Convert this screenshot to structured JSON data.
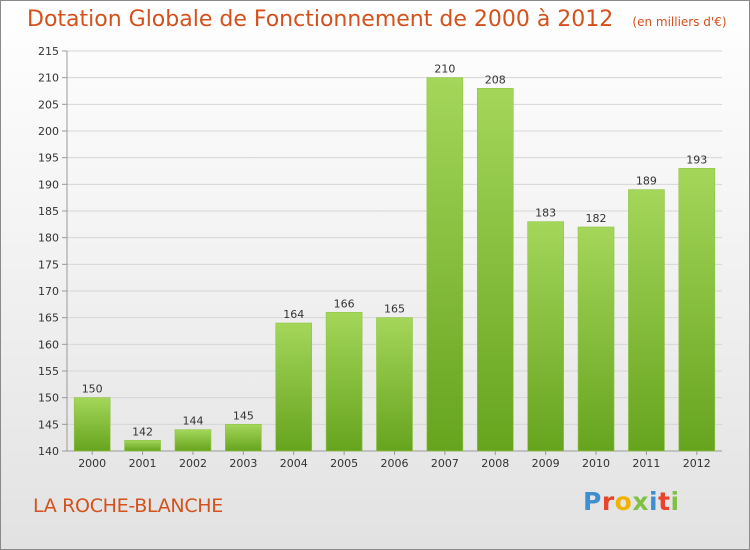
{
  "header": {
    "title": "Dotation Globale de Fonctionnement de 2000 à 2012",
    "unit": "(en milliers d'€)"
  },
  "footer": {
    "commune": "LA ROCHE-BLANCHE",
    "logo": "Proxiti",
    "logo_colors": [
      "#3e8fd0",
      "#e8432c",
      "#f0b400",
      "#7fc243",
      "#3e8fd0",
      "#e8432c",
      "#7fc243"
    ]
  },
  "colors": {
    "title": "#d4511b",
    "bar_light": "#a4d65a",
    "bar_dark": "#66a41e",
    "grid": "#d6d6d6",
    "axis": "#9a9a9a"
  },
  "chart_data": {
    "type": "bar",
    "categories": [
      "2000",
      "2001",
      "2002",
      "2003",
      "2004",
      "2005",
      "2006",
      "2007",
      "2008",
      "2009",
      "2010",
      "2011",
      "2012"
    ],
    "values": [
      150,
      142,
      144,
      145,
      164,
      166,
      165,
      210,
      208,
      183,
      182,
      189,
      193
    ],
    "ylim": [
      140,
      215
    ],
    "yticks": [
      140,
      145,
      150,
      155,
      160,
      165,
      170,
      175,
      180,
      185,
      190,
      195,
      200,
      205,
      210,
      215
    ],
    "grid": true,
    "legend": "none"
  }
}
